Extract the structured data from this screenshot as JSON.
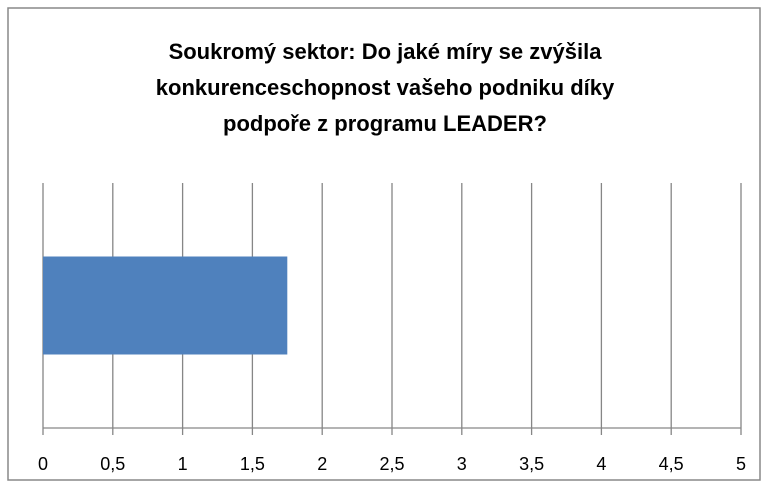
{
  "chart_data": {
    "type": "bar",
    "orientation": "horizontal",
    "title": "Soukromý sektor: Do jaké míry se zvýšila\nkonkurenceschopnost vašeho podniku díky\npodpoře z programu LEADER?",
    "categories": [
      null
    ],
    "values": [
      1.75
    ],
    "color": "#4f81bd",
    "xlim": [
      0,
      5
    ],
    "xticks": [
      0,
      {
        "value": 0.5,
        "label": "0,5"
      },
      1,
      {
        "value": 1.5,
        "label": "1,5"
      },
      2,
      {
        "value": 2.5,
        "label": "2,5"
      },
      3,
      {
        "value": 3.5,
        "label": "3,5"
      },
      4,
      {
        "value": 4.5,
        "label": "4,5"
      },
      5
    ],
    "grid": true
  }
}
